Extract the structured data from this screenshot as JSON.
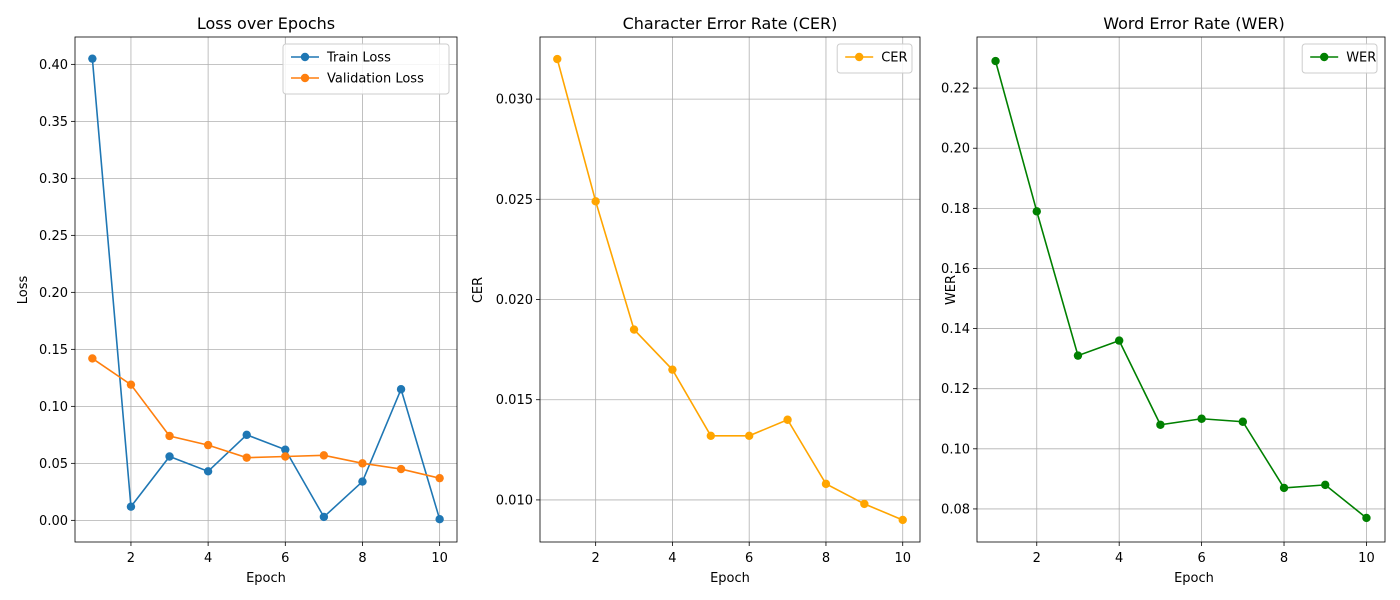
{
  "chart_data": [
    {
      "type": "line",
      "title": "Loss over Epochs",
      "xlabel": "Epoch",
      "ylabel": "Loss",
      "x": [
        1,
        2,
        3,
        4,
        5,
        6,
        7,
        8,
        9,
        10
      ],
      "xlim": [
        0.55,
        10.45
      ],
      "ylim": [
        -0.019,
        0.424
      ],
      "xticks": [
        2,
        4,
        6,
        8,
        10
      ],
      "yticks": [
        0.0,
        0.05,
        0.1,
        0.15,
        0.2,
        0.25,
        0.3,
        0.35,
        0.4
      ],
      "ytick_decimals": 2,
      "grid": true,
      "legend_position": "top-right",
      "series": [
        {
          "name": "Train Loss",
          "color": "#1f77b4",
          "values": [
            0.405,
            0.012,
            0.056,
            0.043,
            0.075,
            0.062,
            0.003,
            0.034,
            0.115,
            0.001
          ]
        },
        {
          "name": "Validation Loss",
          "color": "#ff7f0e",
          "values": [
            0.142,
            0.119,
            0.074,
            0.066,
            0.055,
            0.056,
            0.057,
            0.05,
            0.045,
            0.037
          ]
        }
      ]
    },
    {
      "type": "line",
      "title": "Character Error Rate (CER)",
      "xlabel": "Epoch",
      "ylabel": "CER",
      "x": [
        1,
        2,
        3,
        4,
        5,
        6,
        7,
        8,
        9,
        10
      ],
      "xlim": [
        0.55,
        10.45
      ],
      "ylim": [
        0.0079,
        0.0331
      ],
      "xticks": [
        2,
        4,
        6,
        8,
        10
      ],
      "yticks": [
        0.01,
        0.015,
        0.02,
        0.025,
        0.03
      ],
      "ytick_decimals": 3,
      "grid": true,
      "legend_position": "top-right",
      "series": [
        {
          "name": "CER",
          "color": "#ffa500",
          "values": [
            0.032,
            0.0249,
            0.0185,
            0.0165,
            0.0132,
            0.0132,
            0.014,
            0.0108,
            0.0098,
            0.009
          ]
        }
      ]
    },
    {
      "type": "line",
      "title": "Word Error Rate (WER)",
      "xlabel": "Epoch",
      "ylabel": "WER",
      "x": [
        1,
        2,
        3,
        4,
        5,
        6,
        7,
        8,
        9,
        10
      ],
      "xlim": [
        0.55,
        10.45
      ],
      "ylim": [
        0.069,
        0.237
      ],
      "xticks": [
        2,
        4,
        6,
        8,
        10
      ],
      "yticks": [
        0.08,
        0.1,
        0.12,
        0.14,
        0.16,
        0.18,
        0.2,
        0.22
      ],
      "ytick_decimals": 2,
      "grid": true,
      "legend_position": "top-right",
      "series": [
        {
          "name": "WER",
          "color": "#008000",
          "values": [
            0.229,
            0.179,
            0.131,
            0.136,
            0.108,
            0.11,
            0.109,
            0.087,
            0.088,
            0.077
          ]
        }
      ]
    }
  ]
}
